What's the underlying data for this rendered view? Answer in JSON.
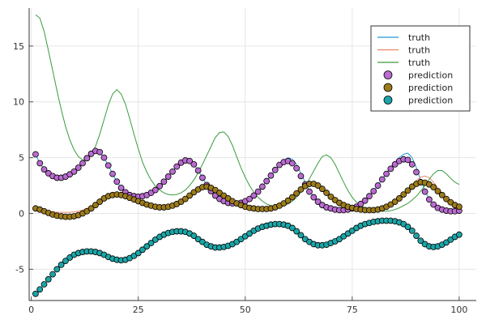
{
  "chart_data": {
    "type": "line",
    "title": "",
    "xlabel": "",
    "ylabel": "",
    "xlim": [
      -0.5,
      104
    ],
    "ylim": [
      -7.8,
      18.4
    ],
    "grid": true,
    "legend_position": "top-right",
    "xticks": [
      0,
      25,
      50,
      75,
      100
    ],
    "yticks": [
      -5,
      0,
      5,
      10,
      15
    ],
    "x": [
      1,
      2,
      3,
      4,
      5,
      6,
      7,
      8,
      9,
      10,
      11,
      12,
      13,
      14,
      15,
      16,
      17,
      18,
      19,
      20,
      21,
      22,
      23,
      24,
      25,
      26,
      27,
      28,
      29,
      30,
      31,
      32,
      33,
      34,
      35,
      36,
      37,
      38,
      39,
      40,
      41,
      42,
      43,
      44,
      45,
      46,
      47,
      48,
      49,
      50,
      51,
      52,
      53,
      54,
      55,
      56,
      57,
      58,
      59,
      60,
      61,
      62,
      63,
      64,
      65,
      66,
      67,
      68,
      69,
      70,
      71,
      72,
      73,
      74,
      75,
      76,
      77,
      78,
      79,
      80,
      81,
      82,
      83,
      84,
      85,
      86,
      87,
      88,
      89,
      90,
      91,
      92,
      93,
      94,
      95,
      96,
      97,
      98,
      99,
      100
    ],
    "series": [
      {
        "name": "truth",
        "kind": "line",
        "color": "#1f9bd1",
        "values": [
          5.3,
          4.5,
          3.95,
          3.6,
          3.35,
          3.2,
          3.2,
          3.3,
          3.5,
          3.75,
          4.1,
          4.5,
          4.95,
          5.35,
          5.6,
          5.5,
          5.0,
          4.3,
          3.55,
          2.85,
          2.3,
          1.9,
          1.65,
          1.55,
          1.5,
          1.55,
          1.65,
          1.85,
          2.1,
          2.45,
          2.85,
          3.3,
          3.75,
          4.2,
          4.55,
          4.75,
          4.7,
          4.4,
          3.85,
          3.2,
          2.55,
          2.0,
          1.6,
          1.3,
          1.1,
          0.95,
          0.9,
          0.9,
          0.95,
          1.1,
          1.3,
          1.6,
          1.95,
          2.4,
          2.9,
          3.4,
          3.9,
          4.35,
          4.75,
          5.0,
          4.85,
          4.4,
          3.6,
          2.8,
          2.05,
          1.5,
          1.1,
          0.8,
          0.6,
          0.45,
          0.35,
          0.3,
          0.3,
          0.35,
          0.45,
          0.6,
          0.8,
          1.1,
          1.5,
          1.95,
          2.5,
          3.05,
          3.6,
          4.15,
          4.6,
          5.0,
          5.3,
          5.4,
          5.0,
          4.1,
          3.0,
          2.05,
          1.3,
          0.85,
          0.55,
          0.35,
          0.25,
          0.2,
          0.2,
          0.25
        ]
      },
      {
        "name": "truth",
        "kind": "line",
        "color": "#e8866b",
        "values": [
          0.45,
          0.35,
          0.25,
          0.2,
          0.15,
          0.1,
          0.1,
          0.1,
          0.1,
          0.15,
          0.2,
          0.3,
          0.45,
          0.65,
          0.85,
          1.1,
          1.35,
          1.55,
          1.65,
          1.7,
          1.65,
          1.55,
          1.4,
          1.25,
          1.1,
          0.95,
          0.8,
          0.7,
          0.6,
          0.55,
          0.55,
          0.6,
          0.7,
          0.85,
          1.05,
          1.3,
          1.6,
          1.9,
          2.15,
          2.35,
          2.4,
          2.3,
          2.1,
          1.85,
          1.6,
          1.35,
          1.1,
          0.9,
          0.75,
          0.6,
          0.5,
          0.45,
          0.4,
          0.4,
          0.4,
          0.45,
          0.55,
          0.7,
          0.9,
          1.15,
          1.45,
          1.8,
          2.15,
          2.45,
          2.65,
          2.65,
          2.5,
          2.2,
          1.85,
          1.5,
          1.2,
          0.95,
          0.75,
          0.6,
          0.5,
          0.4,
          0.35,
          0.3,
          0.3,
          0.3,
          0.35,
          0.45,
          0.6,
          0.8,
          1.05,
          1.35,
          1.7,
          2.1,
          2.55,
          2.95,
          3.25,
          3.35,
          3.2,
          2.8,
          2.3,
          1.8,
          1.35,
          1.0,
          0.75,
          0.6
        ]
      },
      {
        "name": "truth",
        "kind": "line",
        "color": "#3a9b3e",
        "values": [
          17.8,
          17.5,
          16.3,
          14.6,
          12.8,
          11.0,
          9.3,
          7.8,
          6.6,
          5.7,
          5.1,
          4.8,
          4.85,
          5.3,
          6.0,
          7.1,
          8.4,
          9.7,
          10.7,
          11.1,
          10.7,
          9.8,
          8.5,
          7.1,
          5.8,
          4.6,
          3.7,
          3.0,
          2.45,
          2.1,
          1.85,
          1.7,
          1.65,
          1.7,
          1.85,
          2.1,
          2.5,
          3.0,
          3.65,
          4.4,
          5.2,
          6.0,
          6.8,
          7.25,
          7.3,
          6.9,
          6.1,
          5.1,
          4.1,
          3.25,
          2.5,
          1.9,
          1.45,
          1.1,
          0.85,
          0.7,
          0.6,
          0.6,
          0.7,
          0.85,
          1.1,
          1.45,
          1.9,
          2.45,
          3.1,
          3.8,
          4.5,
          5.1,
          5.25,
          5.0,
          4.4,
          3.6,
          2.8,
          2.05,
          1.45,
          1.0,
          0.7,
          0.5,
          0.35,
          0.25,
          0.2,
          0.2,
          0.2,
          0.25,
          0.35,
          0.5,
          0.7,
          0.9,
          1.2,
          1.55,
          2.0,
          2.5,
          3.05,
          3.55,
          3.85,
          3.85,
          3.55,
          3.15,
          2.8,
          2.6
        ]
      },
      {
        "name": "prediction",
        "kind": "scatter",
        "color": "#b96bd0",
        "values": [
          5.3,
          4.5,
          3.95,
          3.6,
          3.35,
          3.2,
          3.2,
          3.3,
          3.5,
          3.75,
          4.1,
          4.5,
          4.95,
          5.35,
          5.6,
          5.5,
          5.0,
          4.3,
          3.55,
          2.85,
          2.3,
          1.9,
          1.65,
          1.55,
          1.5,
          1.55,
          1.65,
          1.85,
          2.1,
          2.45,
          2.85,
          3.3,
          3.75,
          4.2,
          4.55,
          4.75,
          4.7,
          4.4,
          3.85,
          3.2,
          2.55,
          2.0,
          1.6,
          1.3,
          1.1,
          0.95,
          0.9,
          0.9,
          0.95,
          1.1,
          1.3,
          1.6,
          1.95,
          2.4,
          2.9,
          3.4,
          3.9,
          4.35,
          4.6,
          4.7,
          4.5,
          4.05,
          3.35,
          2.6,
          1.95,
          1.45,
          1.05,
          0.75,
          0.55,
          0.45,
          0.35,
          0.3,
          0.3,
          0.35,
          0.45,
          0.6,
          0.85,
          1.15,
          1.55,
          2.0,
          2.5,
          3.05,
          3.55,
          4.0,
          4.4,
          4.7,
          4.85,
          4.8,
          4.4,
          3.7,
          2.8,
          1.95,
          1.25,
          0.8,
          0.5,
          0.35,
          0.25,
          0.2,
          0.2,
          0.25
        ]
      },
      {
        "name": "prediction",
        "kind": "scatter",
        "color": "#9c7b1a",
        "values": [
          0.45,
          0.35,
          0.2,
          0.05,
          -0.1,
          -0.2,
          -0.25,
          -0.3,
          -0.3,
          -0.25,
          -0.15,
          0.0,
          0.2,
          0.45,
          0.75,
          1.05,
          1.35,
          1.55,
          1.65,
          1.7,
          1.65,
          1.55,
          1.4,
          1.25,
          1.1,
          0.95,
          0.8,
          0.7,
          0.6,
          0.55,
          0.55,
          0.6,
          0.7,
          0.85,
          1.05,
          1.3,
          1.6,
          1.9,
          2.15,
          2.35,
          2.4,
          2.3,
          2.1,
          1.85,
          1.6,
          1.35,
          1.1,
          0.9,
          0.75,
          0.6,
          0.5,
          0.45,
          0.4,
          0.4,
          0.4,
          0.45,
          0.55,
          0.7,
          0.9,
          1.15,
          1.45,
          1.8,
          2.15,
          2.45,
          2.65,
          2.65,
          2.5,
          2.2,
          1.85,
          1.5,
          1.2,
          0.95,
          0.75,
          0.6,
          0.5,
          0.4,
          0.35,
          0.3,
          0.3,
          0.3,
          0.35,
          0.45,
          0.6,
          0.8,
          1.05,
          1.35,
          1.7,
          2.05,
          2.4,
          2.65,
          2.8,
          2.75,
          2.6,
          2.35,
          2.0,
          1.65,
          1.3,
          1.0,
          0.75,
          0.6
        ]
      },
      {
        "name": "prediction",
        "kind": "scatter",
        "color": "#1aa6a8",
        "values": [
          -7.2,
          -6.8,
          -6.35,
          -5.9,
          -5.45,
          -5.0,
          -4.6,
          -4.25,
          -3.95,
          -3.7,
          -3.55,
          -3.45,
          -3.4,
          -3.4,
          -3.45,
          -3.55,
          -3.7,
          -3.9,
          -4.05,
          -4.15,
          -4.2,
          -4.15,
          -4.0,
          -3.8,
          -3.55,
          -3.25,
          -2.95,
          -2.65,
          -2.35,
          -2.1,
          -1.9,
          -1.75,
          -1.65,
          -1.6,
          -1.6,
          -1.65,
          -1.8,
          -2.0,
          -2.3,
          -2.55,
          -2.8,
          -2.95,
          -3.05,
          -3.05,
          -3.0,
          -2.9,
          -2.75,
          -2.55,
          -2.3,
          -2.05,
          -1.8,
          -1.55,
          -1.35,
          -1.2,
          -1.1,
          -1.0,
          -0.95,
          -0.95,
          -1.0,
          -1.1,
          -1.3,
          -1.6,
          -1.95,
          -2.3,
          -2.55,
          -2.75,
          -2.85,
          -2.85,
          -2.8,
          -2.65,
          -2.5,
          -2.3,
          -2.05,
          -1.8,
          -1.55,
          -1.3,
          -1.1,
          -0.95,
          -0.85,
          -0.75,
          -0.7,
          -0.65,
          -0.65,
          -0.65,
          -0.7,
          -0.8,
          -0.95,
          -1.2,
          -1.55,
          -2.0,
          -2.45,
          -2.75,
          -2.95,
          -3.0,
          -2.95,
          -2.8,
          -2.6,
          -2.35,
          -2.1,
          -1.9
        ]
      }
    ]
  }
}
